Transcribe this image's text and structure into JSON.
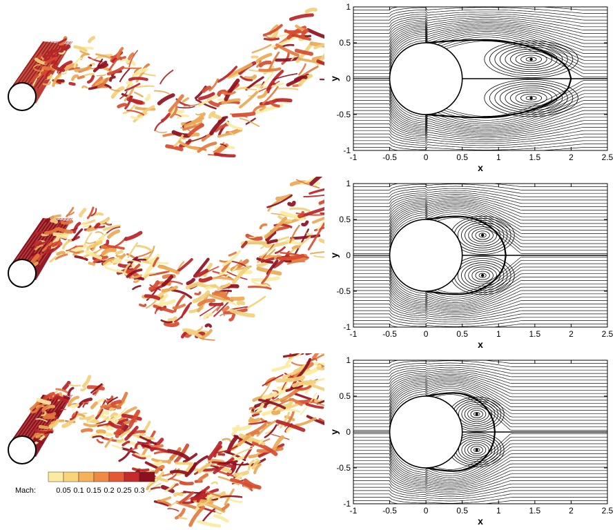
{
  "colorbar": {
    "label": "Mach:",
    "ticks": [
      "0.05",
      "0.1",
      "0.15",
      "0.2",
      "0.25",
      "0.3"
    ],
    "colors": [
      "#fbeaa0",
      "#f9d47a",
      "#f4b25a",
      "#ee8a44",
      "#e25a35",
      "#c72a2a",
      "#8e0f1e"
    ]
  },
  "vortex_colors": [
    "#fbeaa0",
    "#f2cf7a",
    "#eaa956",
    "#e37a3e",
    "#d64a30",
    "#b92327",
    "#8e0f1e"
  ],
  "chart_data": [
    {
      "type": "streamline",
      "xlabel": "x",
      "ylabel": "y",
      "xlim": [
        -1,
        2.5
      ],
      "ylim": [
        -1,
        1
      ],
      "xticks": [
        "-1",
        "-0.5",
        "0",
        "0.5",
        "1",
        "1.5",
        "2",
        "2.5"
      ],
      "yticks": [
        "-1",
        "-0.5",
        "0",
        "0.5",
        "1"
      ],
      "cylinder": {
        "cx": 0,
        "cy": 0,
        "r": 0.5
      },
      "wake_end": 2.0,
      "vortex_centers": [
        {
          "x": 1.45,
          "y": 0.27
        },
        {
          "x": 1.45,
          "y": -0.27
        }
      ]
    },
    {
      "type": "streamline",
      "xlabel": "x",
      "ylabel": "y",
      "xlim": [
        -1,
        2.5
      ],
      "ylim": [
        -1,
        1
      ],
      "xticks": [
        "-1",
        "-0.5",
        "0",
        "0.5",
        "1",
        "1.5",
        "2",
        "2.5"
      ],
      "yticks": [
        "-1",
        "-0.5",
        "0",
        "0.5",
        "1"
      ],
      "cylinder": {
        "cx": 0,
        "cy": 0,
        "r": 0.5
      },
      "wake_end": 1.1,
      "vortex_centers": [
        {
          "x": 0.78,
          "y": 0.28
        },
        {
          "x": 0.78,
          "y": -0.28
        }
      ]
    },
    {
      "type": "streamline",
      "xlabel": "x",
      "ylabel": "y",
      "xlim": [
        -1,
        2.5
      ],
      "ylim": [
        -1,
        1
      ],
      "xticks": [
        "-1",
        "-0.5",
        "0",
        "0.5",
        "1",
        "1.5",
        "2",
        "2.5"
      ],
      "yticks": [
        "-1",
        "-0.5",
        "0",
        "0.5",
        "1"
      ],
      "cylinder": {
        "cx": 0,
        "cy": 0,
        "r": 0.5
      },
      "wake_end": 0.95,
      "vortex_centers": [
        {
          "x": 0.7,
          "y": 0.25
        },
        {
          "x": 0.7,
          "y": -0.25
        }
      ]
    }
  ]
}
